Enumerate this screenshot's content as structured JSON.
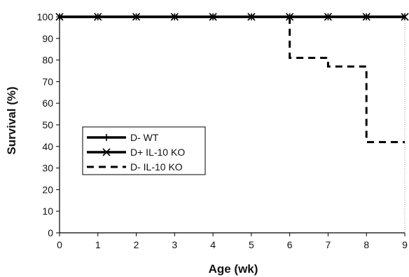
{
  "chart_data": {
    "type": "line",
    "title": "",
    "xlabel": "Age (wk)",
    "ylabel": "Survival (%)",
    "xlim": [
      0,
      9
    ],
    "ylim": [
      0,
      100
    ],
    "x_ticks": [
      0,
      1,
      2,
      3,
      4,
      5,
      6,
      7,
      8,
      9
    ],
    "y_ticks": [
      0,
      10,
      20,
      30,
      40,
      50,
      60,
      70,
      80,
      90,
      100
    ],
    "grid": false,
    "legend_position": "lower-left",
    "series": [
      {
        "name": "D- WT",
        "style": "solid",
        "marker": "plus",
        "color": "#000000",
        "x": [
          0,
          1,
          2,
          3,
          4,
          5,
          6,
          7,
          8,
          9
        ],
        "values": [
          100,
          100,
          100,
          100,
          100,
          100,
          100,
          100,
          100,
          100
        ]
      },
      {
        "name": "D+ IL-10 KO",
        "style": "solid",
        "marker": "x",
        "color": "#000000",
        "x": [
          0,
          1,
          2,
          3,
          4,
          5,
          6,
          7,
          8,
          9
        ],
        "values": [
          100,
          100,
          100,
          100,
          100,
          100,
          100,
          100,
          100,
          100
        ]
      },
      {
        "name": "D- IL-10 KO",
        "style": "dashed-step",
        "marker": "none",
        "color": "#000000",
        "x": [
          6,
          7,
          8,
          9
        ],
        "values": [
          81,
          77,
          42,
          42
        ],
        "start_value": 100
      }
    ]
  }
}
